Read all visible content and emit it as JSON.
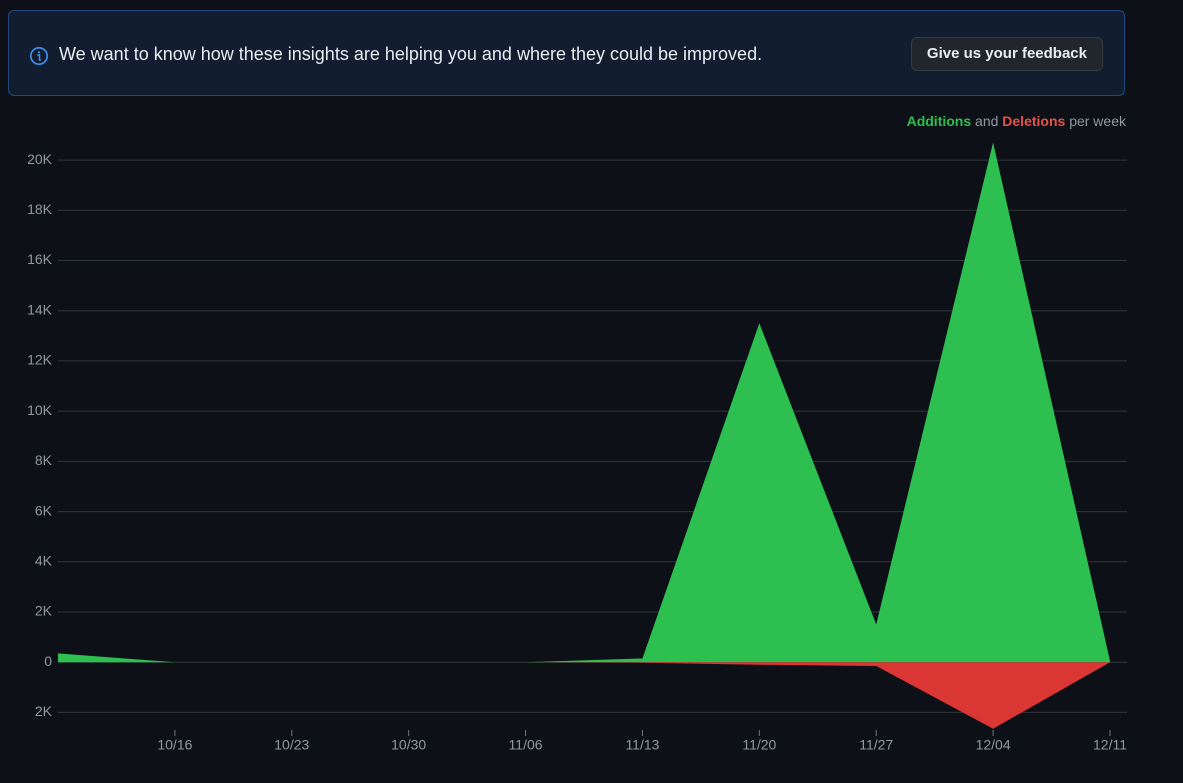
{
  "banner": {
    "message": "We want to know how these insights are helping you and where they could be improved.",
    "button": "Give us your feedback"
  },
  "chart_data": {
    "type": "area",
    "legend_text": {
      "and": "and",
      "suffix": "per week"
    },
    "categories": [
      null,
      "10/16",
      "10/23",
      "10/30",
      "11/06",
      "11/13",
      "11/20",
      "11/27",
      "12/04",
      "12/11"
    ],
    "series": [
      {
        "name": "Additions",
        "color": "#2dc051",
        "values": [
          350,
          0,
          0,
          0,
          0,
          150,
          13500,
          1500,
          20700,
          50
        ]
      },
      {
        "name": "Deletions",
        "color": "#da3633",
        "values": [
          0,
          0,
          0,
          0,
          0,
          -20,
          -100,
          -150,
          -2650,
          0
        ]
      }
    ],
    "ylim": [
      -2700,
      20800
    ],
    "yticks": [
      {
        "value": -2000,
        "label": "2K"
      },
      0,
      {
        "value": 2000,
        "label": "2K"
      },
      {
        "value": 4000,
        "label": "4K"
      },
      {
        "value": 6000,
        "label": "6K"
      },
      {
        "value": 8000,
        "label": "8K"
      },
      {
        "value": 10000,
        "label": "10K"
      },
      {
        "value": 12000,
        "label": "12K"
      },
      {
        "value": 14000,
        "label": "14K"
      },
      {
        "value": 16000,
        "label": "16K"
      },
      {
        "value": 18000,
        "label": "18K"
      },
      {
        "value": 20000,
        "label": "20K"
      }
    ],
    "grid": true
  }
}
